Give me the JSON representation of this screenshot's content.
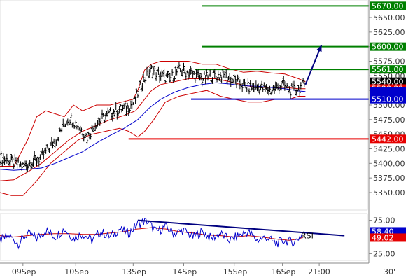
{
  "chart_data": {
    "type": "line",
    "title": "",
    "price_panel": {
      "ylim": [
        5320,
        5680
      ],
      "y_ticks": [
        "5670.00",
        "5650.00",
        "5625.00",
        "5600.00",
        "5575.00",
        "5550.00",
        "5525.00",
        "5500.00",
        "5475.00",
        "5450.00",
        "5425.00",
        "5400.00",
        "5375.00",
        "5350.00"
      ],
      "tick_values": [
        5670,
        5650,
        5625,
        5600,
        5575,
        5550,
        5525,
        5500,
        5475,
        5450,
        5425,
        5400,
        5375,
        5350
      ],
      "levels": [
        {
          "value": 5670,
          "label": "5670.00",
          "color": "#008000",
          "x_start": 0.55
        },
        {
          "value": 5600,
          "label": "5600.00",
          "color": "#008000",
          "x_start": 0.55
        },
        {
          "value": 5561,
          "label": "5561.00",
          "color": "#008000",
          "x_start": 0.53
        },
        {
          "value": 5510,
          "label": "5510.00",
          "color": "#0000cc",
          "x_start": 0.52
        },
        {
          "value": 5442,
          "label": "5442.00",
          "color": "#e60000",
          "x_start": 0.35
        }
      ],
      "value_tags": [
        {
          "value": 5540,
          "label": "5540.00",
          "color": "#000000"
        },
        {
          "value": 5528.22,
          "label": "5528.22",
          "color": "#e60000"
        },
        {
          "value": 5523,
          "label": "",
          "color": "#0000cc"
        }
      ],
      "bar_step": 0.05,
      "bars": [],
      "close_path": [
        [
          0.0,
          5410
        ],
        [
          1.0,
          5395
        ],
        [
          1.8,
          5410
        ],
        [
          2.5,
          5445
        ],
        [
          3.0,
          5480
        ],
        [
          3.4,
          5465
        ],
        [
          3.8,
          5445
        ],
        [
          4.2,
          5470
        ],
        [
          4.6,
          5480
        ],
        [
          5.0,
          5490
        ],
        [
          5.5,
          5495
        ],
        [
          5.85,
          5505
        ],
        [
          6.2,
          5540
        ],
        [
          6.6,
          5560
        ],
        [
          7.0,
          5550
        ],
        [
          7.4,
          5545
        ],
        [
          7.8,
          5560
        ],
        [
          8.3,
          5555
        ],
        [
          8.8,
          5545
        ],
        [
          9.3,
          5550
        ],
        [
          9.8,
          5550
        ],
        [
          10.3,
          5540
        ],
        [
          10.8,
          5530
        ],
        [
          11.3,
          5530
        ],
        [
          11.8,
          5525
        ],
        [
          12.3,
          5535
        ],
        [
          12.6,
          5525
        ],
        [
          13.0,
          5528
        ],
        [
          13.3,
          5538
        ]
      ],
      "bb_upper": [
        [
          0.0,
          5395
        ],
        [
          0.6,
          5395
        ],
        [
          1.2,
          5440
        ],
        [
          1.6,
          5480
        ],
        [
          2.0,
          5490
        ],
        [
          2.4,
          5485
        ],
        [
          2.8,
          5480
        ],
        [
          3.2,
          5500
        ],
        [
          3.6,
          5490
        ],
        [
          4.2,
          5500
        ],
        [
          4.8,
          5500
        ],
        [
          5.3,
          5505
        ],
        [
          5.8,
          5510
        ],
        [
          6.0,
          5525
        ],
        [
          6.3,
          5560
        ],
        [
          6.6,
          5570
        ],
        [
          7.0,
          5575
        ],
        [
          7.6,
          5575
        ],
        [
          8.2,
          5575
        ],
        [
          8.8,
          5570
        ],
        [
          9.4,
          5570
        ],
        [
          10.0,
          5562
        ],
        [
          10.6,
          5556
        ],
        [
          11.2,
          5558
        ],
        [
          11.8,
          5555
        ],
        [
          12.4,
          5553
        ],
        [
          13.0,
          5545
        ],
        [
          13.3,
          5540
        ]
      ],
      "bb_lower": [
        [
          0.0,
          5350
        ],
        [
          0.5,
          5345
        ],
        [
          1.0,
          5345
        ],
        [
          1.6,
          5370
        ],
        [
          2.2,
          5400
        ],
        [
          2.8,
          5420
        ],
        [
          3.4,
          5440
        ],
        [
          4.0,
          5450
        ],
        [
          4.6,
          5455
        ],
        [
          5.2,
          5460
        ],
        [
          5.6,
          5455
        ],
        [
          6.0,
          5445
        ],
        [
          6.3,
          5455
        ],
        [
          6.7,
          5475
        ],
        [
          7.2,
          5505
        ],
        [
          7.8,
          5515
        ],
        [
          8.4,
          5520
        ],
        [
          9.0,
          5525
        ],
        [
          9.6,
          5515
        ],
        [
          10.2,
          5510
        ],
        [
          10.8,
          5505
        ],
        [
          11.4,
          5505
        ],
        [
          12.0,
          5510
        ],
        [
          12.6,
          5510
        ],
        [
          13.0,
          5515
        ],
        [
          13.3,
          5515
        ]
      ],
      "ma_red": [
        [
          0.0,
          5370
        ],
        [
          0.6,
          5372
        ],
        [
          1.2,
          5385
        ],
        [
          1.8,
          5400
        ],
        [
          2.4,
          5420
        ],
        [
          3.0,
          5440
        ],
        [
          3.6,
          5455
        ],
        [
          4.2,
          5465
        ],
        [
          4.8,
          5475
        ],
        [
          5.4,
          5482
        ],
        [
          5.9,
          5490
        ],
        [
          6.2,
          5505
        ],
        [
          6.6,
          5525
        ],
        [
          7.0,
          5535
        ],
        [
          7.6,
          5540
        ],
        [
          8.2,
          5545
        ],
        [
          8.8,
          5545
        ],
        [
          9.4,
          5545
        ],
        [
          10.0,
          5540
        ],
        [
          10.6,
          5534
        ],
        [
          11.2,
          5530
        ],
        [
          11.8,
          5530
        ],
        [
          12.4,
          5530
        ],
        [
          13.0,
          5528
        ],
        [
          13.3,
          5528
        ]
      ],
      "ma_blue": [
        [
          0.0,
          5390
        ],
        [
          0.6,
          5388
        ],
        [
          1.2,
          5390
        ],
        [
          1.8,
          5392
        ],
        [
          2.4,
          5400
        ],
        [
          3.0,
          5410
        ],
        [
          3.6,
          5420
        ],
        [
          4.2,
          5435
        ],
        [
          4.8,
          5448
        ],
        [
          5.4,
          5460
        ],
        [
          6.0,
          5475
        ],
        [
          6.5,
          5495
        ],
        [
          7.0,
          5510
        ],
        [
          7.6,
          5522
        ],
        [
          8.2,
          5530
        ],
        [
          8.8,
          5535
        ],
        [
          9.4,
          5538
        ],
        [
          10.0,
          5536
        ],
        [
          10.6,
          5533
        ],
        [
          11.2,
          5532
        ],
        [
          11.8,
          5530
        ],
        [
          12.4,
          5528
        ],
        [
          13.0,
          5524
        ],
        [
          13.3,
          5523
        ]
      ],
      "projection_arrow": {
        "from": [
          13.3,
          5535
        ],
        "to": [
          14.0,
          5603
        ],
        "color": "#000080"
      }
    },
    "rsi_panel": {
      "label": "RSI",
      "ylim": [
        15,
        85
      ],
      "y_ticks": [
        "75.00",
        "50.00",
        "25.00"
      ],
      "tick_values": [
        75,
        50,
        25
      ],
      "rsi": [],
      "rsi_keys": [
        [
          0.0,
          45
        ],
        [
          0.4,
          52
        ],
        [
          0.8,
          40
        ],
        [
          1.2,
          55
        ],
        [
          1.6,
          48
        ],
        [
          2.0,
          60
        ],
        [
          2.4,
          50
        ],
        [
          2.8,
          62
        ],
        [
          3.2,
          48
        ],
        [
          3.6,
          55
        ],
        [
          4.0,
          45
        ],
        [
          4.4,
          58
        ],
        [
          4.8,
          50
        ],
        [
          5.2,
          62
        ],
        [
          5.6,
          55
        ],
        [
          6.0,
          70
        ],
        [
          6.4,
          74
        ],
        [
          6.8,
          58
        ],
        [
          7.2,
          65
        ],
        [
          7.6,
          55
        ],
        [
          8.0,
          60
        ],
        [
          8.4,
          50
        ],
        [
          8.8,
          58
        ],
        [
          9.2,
          48
        ],
        [
          9.6,
          55
        ],
        [
          10.0,
          45
        ],
        [
          10.4,
          52
        ],
        [
          10.8,
          58
        ],
        [
          11.2,
          45
        ],
        [
          11.6,
          50
        ],
        [
          12.0,
          40
        ],
        [
          12.4,
          45
        ],
        [
          12.8,
          42
        ],
        [
          13.1,
          52
        ],
        [
          13.3,
          62
        ]
      ],
      "signal": [],
      "signal_keys": [
        [
          0.0,
          52
        ],
        [
          0.6,
          50
        ],
        [
          1.2,
          52
        ],
        [
          1.8,
          54
        ],
        [
          2.4,
          55
        ],
        [
          3.0,
          55
        ],
        [
          3.6,
          54
        ],
        [
          4.2,
          54
        ],
        [
          4.8,
          56
        ],
        [
          5.4,
          58
        ],
        [
          6.0,
          62
        ],
        [
          6.6,
          64
        ],
        [
          7.2,
          62
        ],
        [
          7.8,
          58
        ],
        [
          8.4,
          56
        ],
        [
          9.0,
          53
        ],
        [
          9.6,
          52
        ],
        [
          10.2,
          50
        ],
        [
          10.8,
          52
        ],
        [
          11.4,
          50
        ],
        [
          12.0,
          47
        ],
        [
          12.6,
          45
        ],
        [
          13.0,
          47
        ],
        [
          13.3,
          51
        ]
      ],
      "value_tags": [
        {
          "value": 58.4,
          "label": "58.40",
          "color": "#0000cc"
        },
        {
          "value": 49.02,
          "label": "49.02",
          "color": "#e60000"
        }
      ],
      "trendline": {
        "from": [
          6.0,
          75
        ],
        "to": [
          15.0,
          52
        ],
        "color": "#000080"
      }
    },
    "x_axis": {
      "categories": [
        "09Sep",
        "10Sep",
        "13Sep",
        "14Sep",
        "15Sep",
        "16Sep",
        "21:00"
      ],
      "positions": [
        1.0,
        3.3,
        5.8,
        8.0,
        10.2,
        12.3,
        13.9
      ],
      "extra_label": "30'",
      "xlim": [
        0,
        16
      ]
    }
  }
}
